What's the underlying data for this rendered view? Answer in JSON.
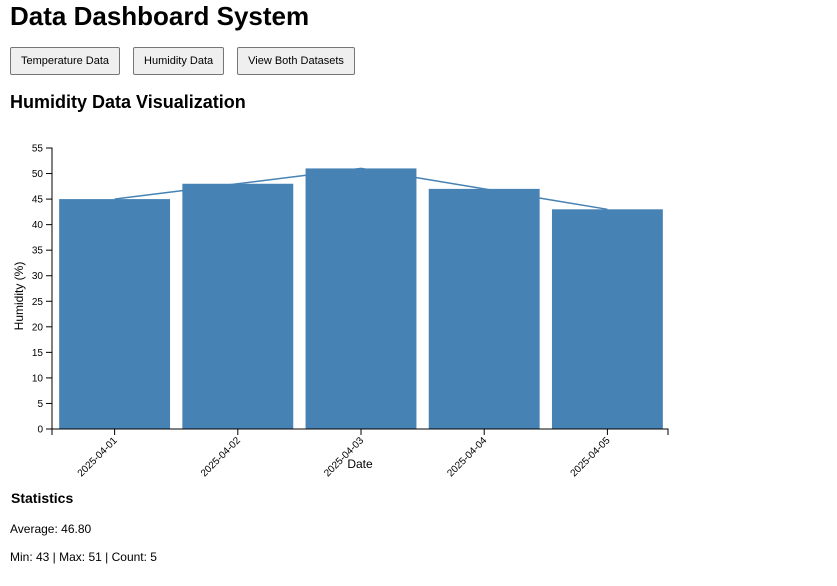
{
  "app": {
    "title": "Data Dashboard System"
  },
  "toolbar": {
    "temperature_label": "Temperature Data",
    "humidity_label": "Humidity Data",
    "both_label": "View Both Datasets"
  },
  "section": {
    "title": "Humidity Data Visualization"
  },
  "colors": {
    "bar": "#4682b4",
    "line": "#4682b4",
    "axis": "#000000"
  },
  "chart_data": {
    "type": "bar",
    "categories": [
      "2025-04-01",
      "2025-04-02",
      "2025-04-03",
      "2025-04-04",
      "2025-04-05"
    ],
    "values": [
      45,
      48,
      51,
      47,
      43
    ],
    "overlay_line": true,
    "title": "",
    "xlabel": "Date",
    "ylabel": "Humidity (%)",
    "ylim": [
      0,
      55
    ],
    "yticks": [
      0,
      5,
      10,
      15,
      20,
      25,
      30,
      35,
      40,
      45,
      50,
      55
    ],
    "grid": false,
    "legend": "none"
  },
  "statistics": {
    "title": "Statistics",
    "average_line": "Average: 46.80",
    "minmax_line": "Min: 43 | Max: 51 | Count: 5"
  }
}
